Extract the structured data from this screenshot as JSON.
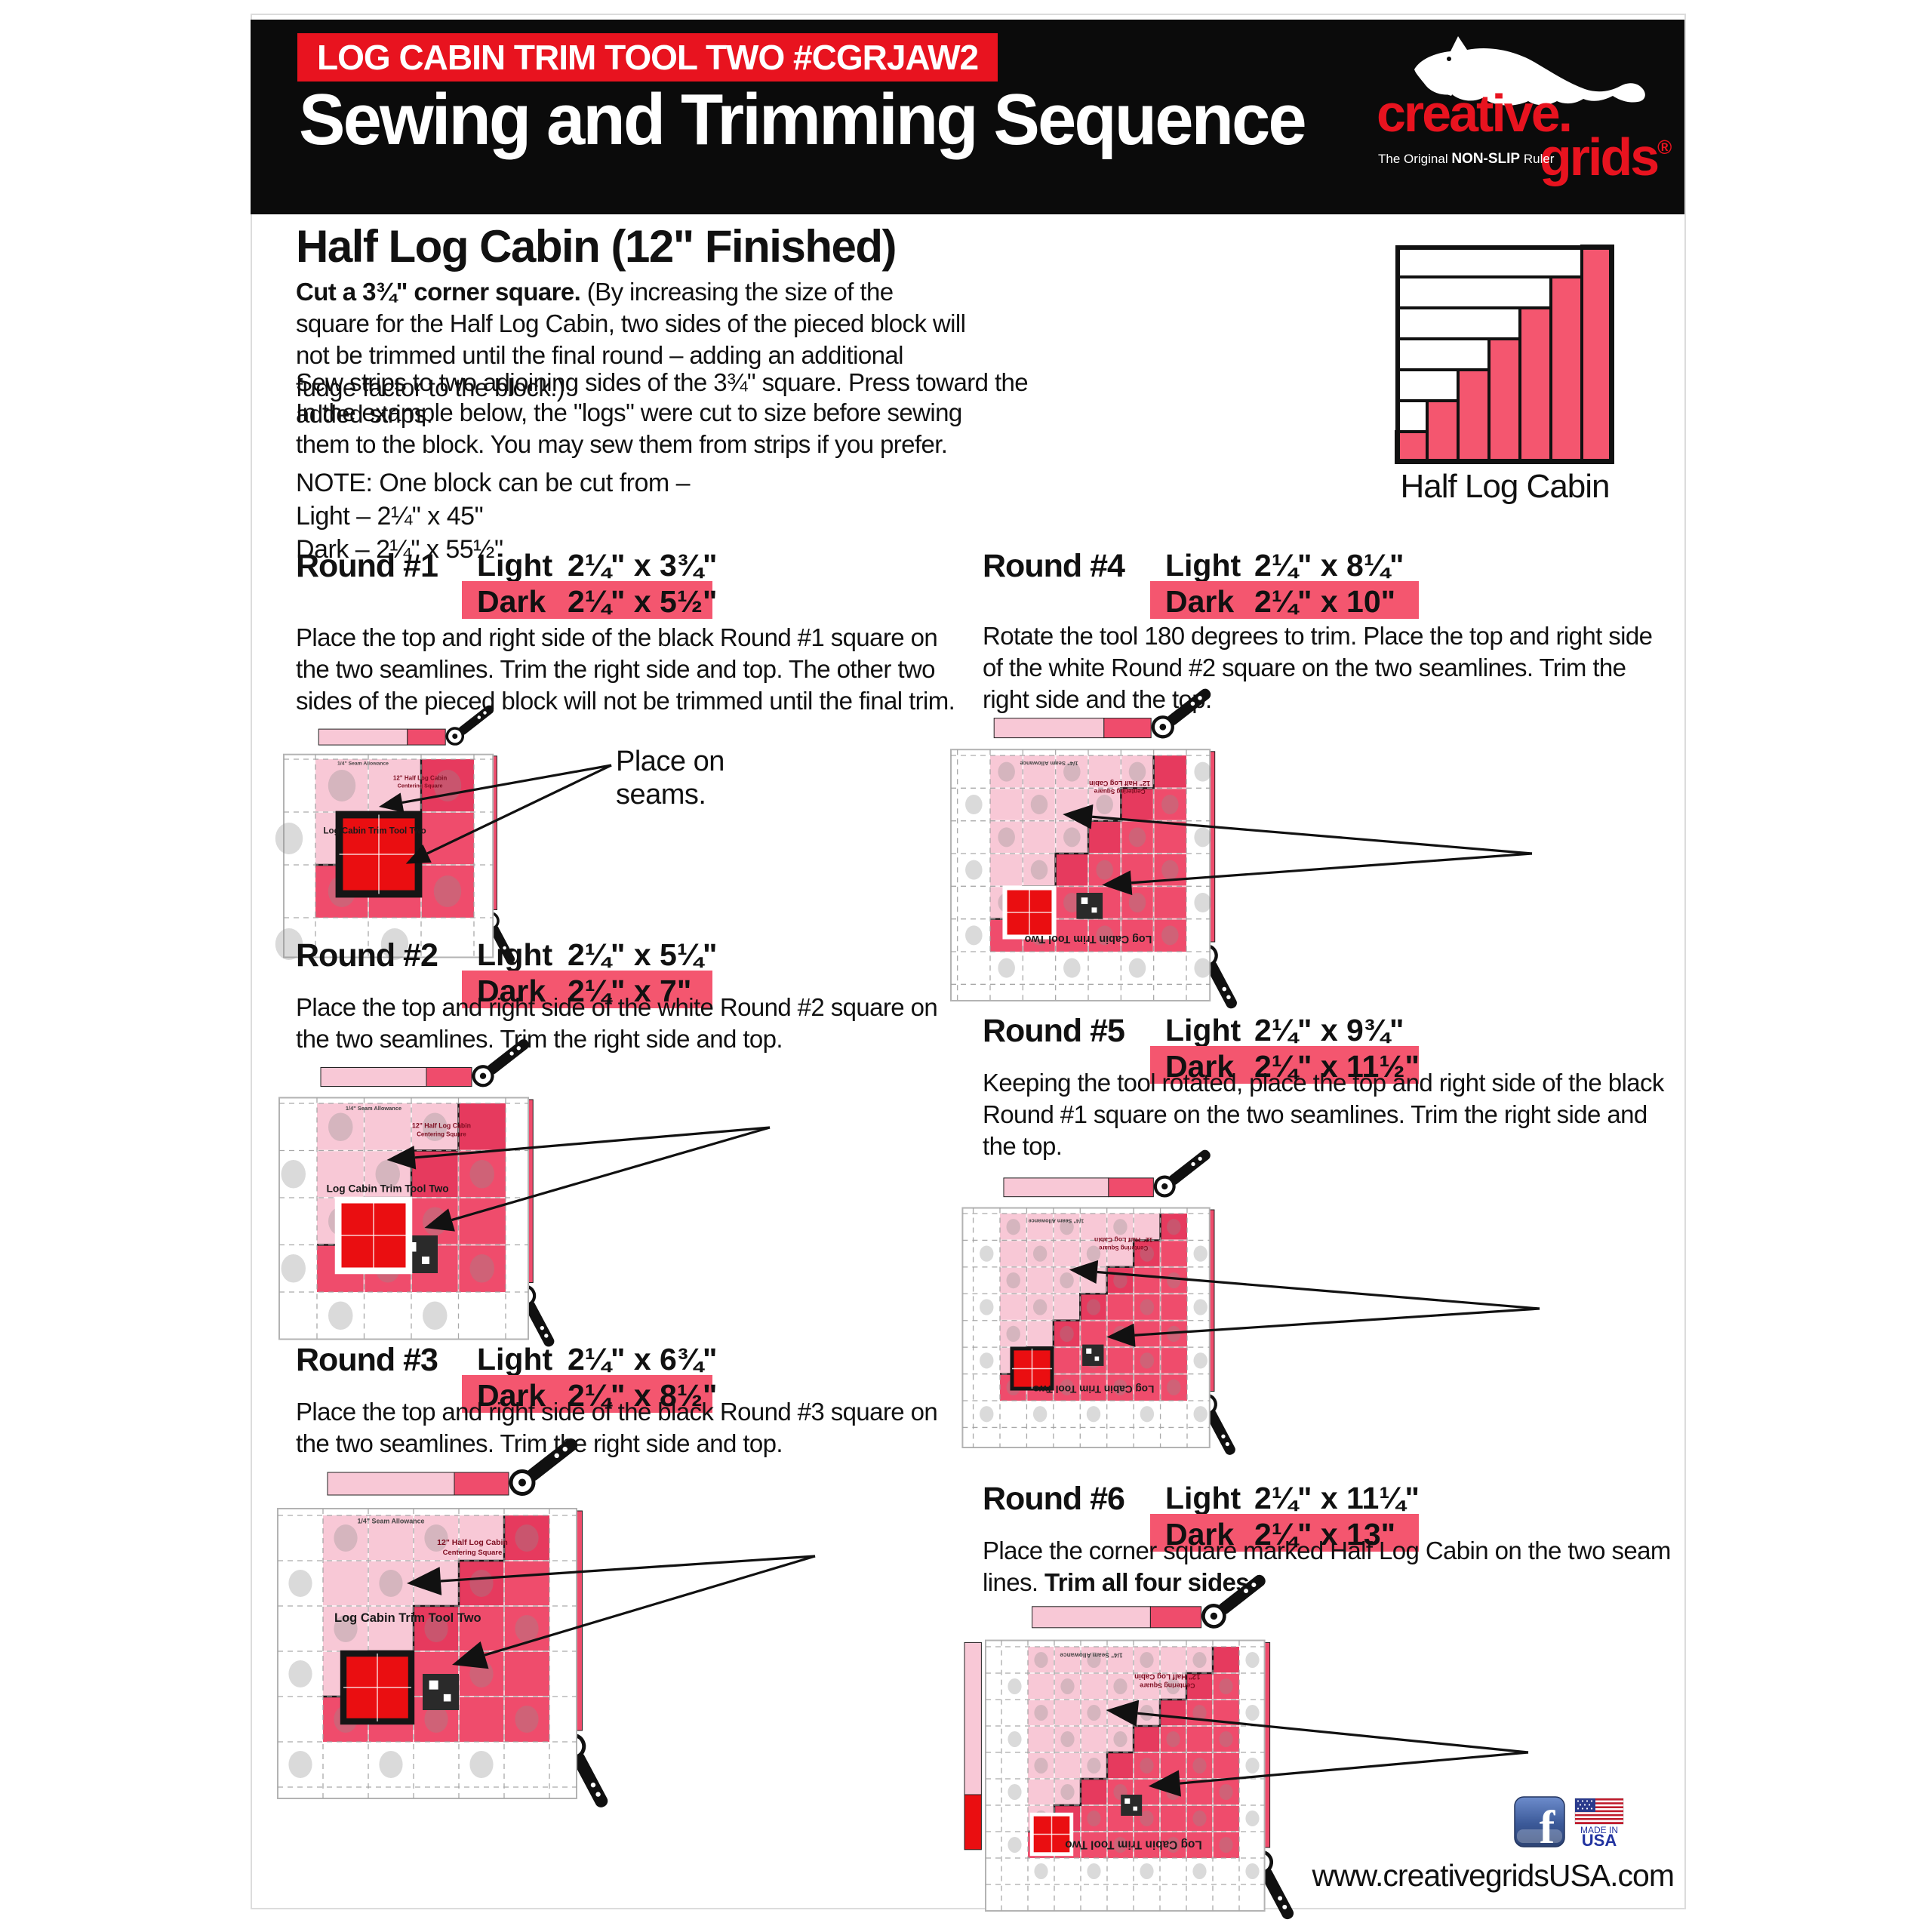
{
  "header": {
    "badge": "LOG CABIN TRIM TOOL TWO #CGRJAW2",
    "title": "Sewing and Trimming Sequence",
    "logo": {
      "brand_top": "creative.",
      "brand_bottom": "grids",
      "registered": "®",
      "tagline_pre": "The Original ",
      "tagline_bold": "NON-SLIP",
      "tagline_post": " Ruler"
    }
  },
  "intro": {
    "heading": "Half Log Cabin (12\" Finished)",
    "p1_bold": "Cut a 3¾\" corner square.",
    "p1_rest": " (By increasing the size of the square for the Half Log Cabin, two sides of the pieced block will not be trimmed until the final round – adding an additional fudge factor to the block.)",
    "p2": "Sew strips to two adjoining sides of the 3¾\" square. Press toward the added strips.",
    "p3": "In the example below, the \"logs\" were cut to size before sewing them to the block. You may sew them from strips if you prefer.",
    "note_line1": "NOTE:  One block can be cut from –",
    "note_line2": "Light – 2¼\" x 45\"",
    "note_line3": "Dark – 2¼\" x 55½\""
  },
  "block_preview": {
    "caption": "Half Log Cabin"
  },
  "rounds": [
    {
      "name": "Round #1",
      "light_label": "Light",
      "light_size": "2¼\" x 3¾\"",
      "dark_label": "Dark",
      "dark_size": "2¼\" x 5½\"",
      "text": "Place the top and right side of the black Round #1 square on the two seamlines. Trim the right side and top. The other two sides of the pieced block will not be trimmed until the final trim.",
      "annotation_line1": "Place on",
      "annotation_line2": "seams."
    },
    {
      "name": "Round #2",
      "light_label": "Light",
      "light_size": "2¼\" x 5¼\"",
      "dark_label": "Dark",
      "dark_size": "2¼\" x 7\"",
      "text": "Place the top and right side of the white Round #2 square on the two seamlines. Trim the right side and top."
    },
    {
      "name": "Round #3",
      "light_label": "Light",
      "light_size": "2¼\" x 6¾\"",
      "dark_label": "Dark",
      "dark_size": "2¼\" x 8½\"",
      "text": "Place the top and right side of the black Round #3 square on the two seamlines. Trim the right side and top."
    },
    {
      "name": "Round #4",
      "light_label": "Light",
      "light_size": "2¼\" x 8¼\"",
      "dark_label": "Dark",
      "dark_size": "2¼\" x 10\"",
      "text": "Rotate the tool 180 degrees to trim. Place the top and right side of the white Round #2 square on the two seamlines. Trim the right side and the top."
    },
    {
      "name": "Round #5",
      "light_label": "Light",
      "light_size": "2¼\" x 9¾\"",
      "dark_label": "Dark",
      "dark_size": "2¼\" x 11½\"",
      "text": "Keeping the tool rotated, place the top and right side of the black Round #1 square on the two seamlines. Trim the right side and the top."
    },
    {
      "name": "Round #6",
      "light_label": "Light",
      "light_size": "2¼\" x 11¼\"",
      "dark_label": "Dark",
      "dark_size": "2¼\" x 13\"",
      "text_pre": "Place the corner square marked Half Log Cabin on the two seam lines. ",
      "text_bold": "Trim all four sides."
    }
  ],
  "diagram": {
    "tool_label": "Log Cabin Trim Tool Two",
    "centering_line1": "12\" Half Log Cabin",
    "centering_line2": "Centering Square",
    "seam_label": "1/4\" Seam Allowance"
  },
  "footer": {
    "facebook_letter": "f",
    "flag_made_in": "MADE IN",
    "flag_usa": "USA",
    "website": "www.creativegridsUSA.com"
  },
  "colors": {
    "accent": "#e8131f",
    "highlight": "#f4566f",
    "light_pink": "#f8c8d6",
    "rose": "#ef4c6c",
    "rose_dark": "#e63a5e",
    "red": "#ea0e11"
  }
}
